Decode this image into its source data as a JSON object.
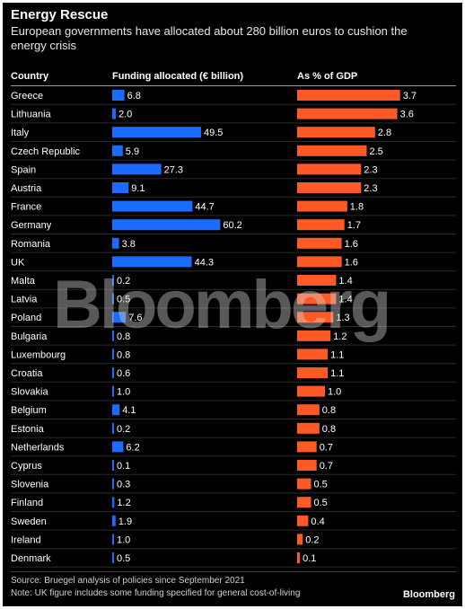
{
  "header": {
    "title": "Energy Rescue",
    "subtitle": "European governments have allocated about 280 billion euros to cushion the energy crisis"
  },
  "columns": {
    "country": "Country",
    "funding": "Funding allocated (€ billion)",
    "gdp": "As % of GDP"
  },
  "colors": {
    "funding": "#1a6cff",
    "gdp": "#ff5a26"
  },
  "watermark": "Bloomberg",
  "footer": {
    "source": "Source: Bruegel analysis of policies since September 2021",
    "note": "Note: UK figure includes some funding specified for general cost-of-living",
    "logo": "Bloomberg"
  },
  "chart_data": {
    "type": "bar",
    "categories": [
      "Greece",
      "Lithuania",
      "Italy",
      "Czech Republic",
      "Spain",
      "Austria",
      "France",
      "Germany",
      "Romania",
      "UK",
      "Malta",
      "Latvia",
      "Poland",
      "Bulgaria",
      "Luxembourg",
      "Croatia",
      "Slovakia",
      "Belgium",
      "Estonia",
      "Netherlands",
      "Cyprus",
      "Slovenia",
      "Finland",
      "Sweden",
      "Ireland",
      "Denmark"
    ],
    "series": [
      {
        "name": "Funding allocated (€ billion)",
        "values": [
          6.8,
          2.0,
          49.5,
          5.9,
          27.3,
          9.1,
          44.7,
          60.2,
          3.8,
          44.3,
          0.2,
          0.5,
          7.6,
          0.8,
          0.8,
          0.6,
          1.0,
          4.1,
          0.2,
          6.2,
          0.1,
          0.3,
          1.2,
          1.9,
          1.0,
          0.5
        ]
      },
      {
        "name": "As % of GDP",
        "values": [
          3.7,
          3.6,
          2.8,
          2.5,
          2.3,
          2.3,
          1.8,
          1.7,
          1.6,
          1.6,
          1.4,
          1.4,
          1.3,
          1.2,
          1.1,
          1.1,
          1.0,
          0.8,
          0.8,
          0.7,
          0.7,
          0.5,
          0.5,
          0.4,
          0.2,
          0.1
        ]
      }
    ]
  }
}
